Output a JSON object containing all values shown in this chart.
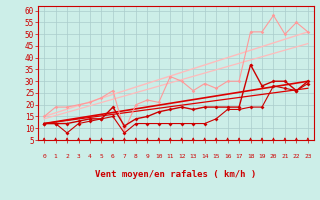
{
  "background_color": "#cceee8",
  "grid_color": "#aacccc",
  "xlabel": "Vent moyen/en rafales ( km/h )",
  "xlim": [
    -0.5,
    23.5
  ],
  "ylim": [
    5,
    62
  ],
  "yticks": [
    5,
    10,
    15,
    20,
    25,
    30,
    35,
    40,
    45,
    50,
    55,
    60
  ],
  "xticks": [
    0,
    1,
    2,
    3,
    4,
    5,
    6,
    7,
    8,
    9,
    10,
    11,
    12,
    13,
    14,
    15,
    16,
    17,
    18,
    19,
    20,
    21,
    22,
    23
  ],
  "lines": [
    {
      "x": [
        0,
        1,
        2,
        3,
        4,
        5,
        6,
        7,
        8,
        9,
        10,
        11,
        12,
        13,
        14,
        15,
        16,
        17,
        18,
        19,
        20,
        21,
        22,
        23
      ],
      "y": [
        15,
        19,
        19,
        20,
        21,
        23,
        26,
        9,
        20,
        22,
        21,
        32,
        30,
        26,
        29,
        27,
        30,
        30,
        51,
        51,
        58,
        50,
        55,
        51
      ],
      "color": "#ff9999",
      "lw": 0.8,
      "marker": "D",
      "ms": 1.8,
      "zorder": 3
    },
    {
      "x": [
        0,
        1,
        2,
        3,
        4,
        5,
        6,
        7,
        8,
        9,
        10,
        11,
        12,
        13,
        14,
        15,
        16,
        17,
        18,
        19,
        20,
        21,
        22,
        23
      ],
      "y": [
        12,
        12,
        12,
        13,
        14,
        14,
        19,
        11,
        14,
        15,
        17,
        18,
        19,
        18,
        19,
        19,
        19,
        19,
        37,
        28,
        30,
        30,
        26,
        30
      ],
      "color": "#cc0000",
      "lw": 1.0,
      "marker": "D",
      "ms": 2.0,
      "zorder": 4
    },
    {
      "x": [
        0,
        1,
        2,
        3,
        4,
        5,
        6,
        7,
        8,
        9,
        10,
        11,
        12,
        13,
        14,
        15,
        16,
        17,
        18,
        19,
        20,
        21,
        22,
        23
      ],
      "y": [
        12,
        12,
        8,
        12,
        13,
        14,
        15,
        8,
        12,
        12,
        12,
        12,
        12,
        12,
        12,
        14,
        18,
        18,
        19,
        19,
        28,
        27,
        26,
        29
      ],
      "color": "#cc0000",
      "lw": 0.8,
      "marker": "D",
      "ms": 2.0,
      "zorder": 4
    },
    {
      "x": [
        0,
        23
      ],
      "y": [
        15,
        51
      ],
      "color": "#ffbbbb",
      "lw": 1.0,
      "marker": null,
      "ms": 0,
      "zorder": 2
    },
    {
      "x": [
        0,
        23
      ],
      "y": [
        14,
        46
      ],
      "color": "#ffbbbb",
      "lw": 0.9,
      "marker": null,
      "ms": 0,
      "zorder": 2
    },
    {
      "x": [
        0,
        23
      ],
      "y": [
        12,
        30
      ],
      "color": "#dd0000",
      "lw": 1.2,
      "marker": null,
      "ms": 0,
      "zorder": 2
    },
    {
      "x": [
        0,
        23
      ],
      "y": [
        12,
        27
      ],
      "color": "#dd0000",
      "lw": 0.9,
      "marker": null,
      "ms": 0,
      "zorder": 2
    }
  ],
  "xlabel_color": "#cc0000",
  "xlabel_fontsize": 6.5,
  "xtick_fontsize": 4.5,
  "ytick_fontsize": 5.5,
  "tick_color": "#cc0000",
  "spine_color": "#cc0000"
}
